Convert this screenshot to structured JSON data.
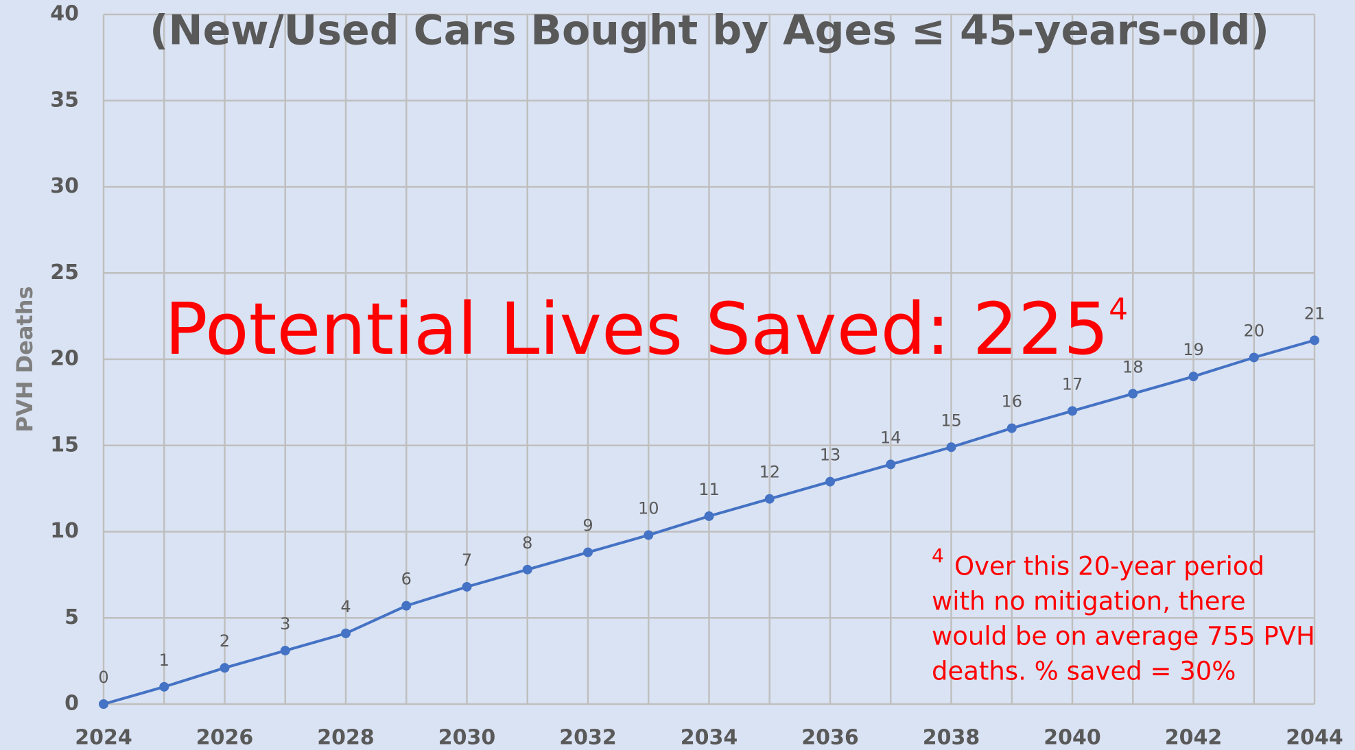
{
  "chart_data": {
    "type": "line",
    "title": "(New/Used Cars Bought by Ages ≤ 45-years-old)",
    "y_label": "PVH Deaths",
    "annotation": {
      "text": "Potential Lives Saved: 225",
      "superscript": "4"
    },
    "footnote": {
      "marker": "4",
      "lines": [
        "Over this 20-year period",
        "with no mitigation, there",
        "would be on average 755 PVH",
        "deaths. % saved = 30%"
      ]
    },
    "x": [
      2024,
      2025,
      2026,
      2027,
      2028,
      2029,
      2030,
      2031,
      2032,
      2033,
      2034,
      2035,
      2036,
      2037,
      2038,
      2039,
      2040,
      2041,
      2042,
      2043,
      2044
    ],
    "series": [
      {
        "name": "PVH Deaths",
        "color": "#4472c4",
        "values": [
          0,
          1.0,
          2.1,
          3.1,
          4.1,
          5.7,
          6.8,
          7.8,
          8.8,
          9.8,
          10.9,
          11.9,
          12.9,
          13.9,
          14.9,
          16.0,
          17.0,
          18.0,
          19.0,
          20.1,
          21.1
        ],
        "value_labels": [
          "0",
          "1",
          "2",
          "3",
          "4",
          "6",
          "7",
          "8",
          "9",
          "10",
          "11",
          "12",
          "13",
          "14",
          "15",
          "16",
          "17",
          "18",
          "19",
          "20",
          "21"
        ]
      }
    ],
    "xlim": [
      2024,
      2044
    ],
    "xticks": [
      2024,
      2026,
      2028,
      2030,
      2032,
      2034,
      2036,
      2038,
      2040,
      2042,
      2044
    ],
    "ylim": [
      0,
      40
    ],
    "yticks": [
      0,
      5,
      10,
      15,
      20,
      25,
      30,
      35,
      40
    ],
    "grid": true
  }
}
